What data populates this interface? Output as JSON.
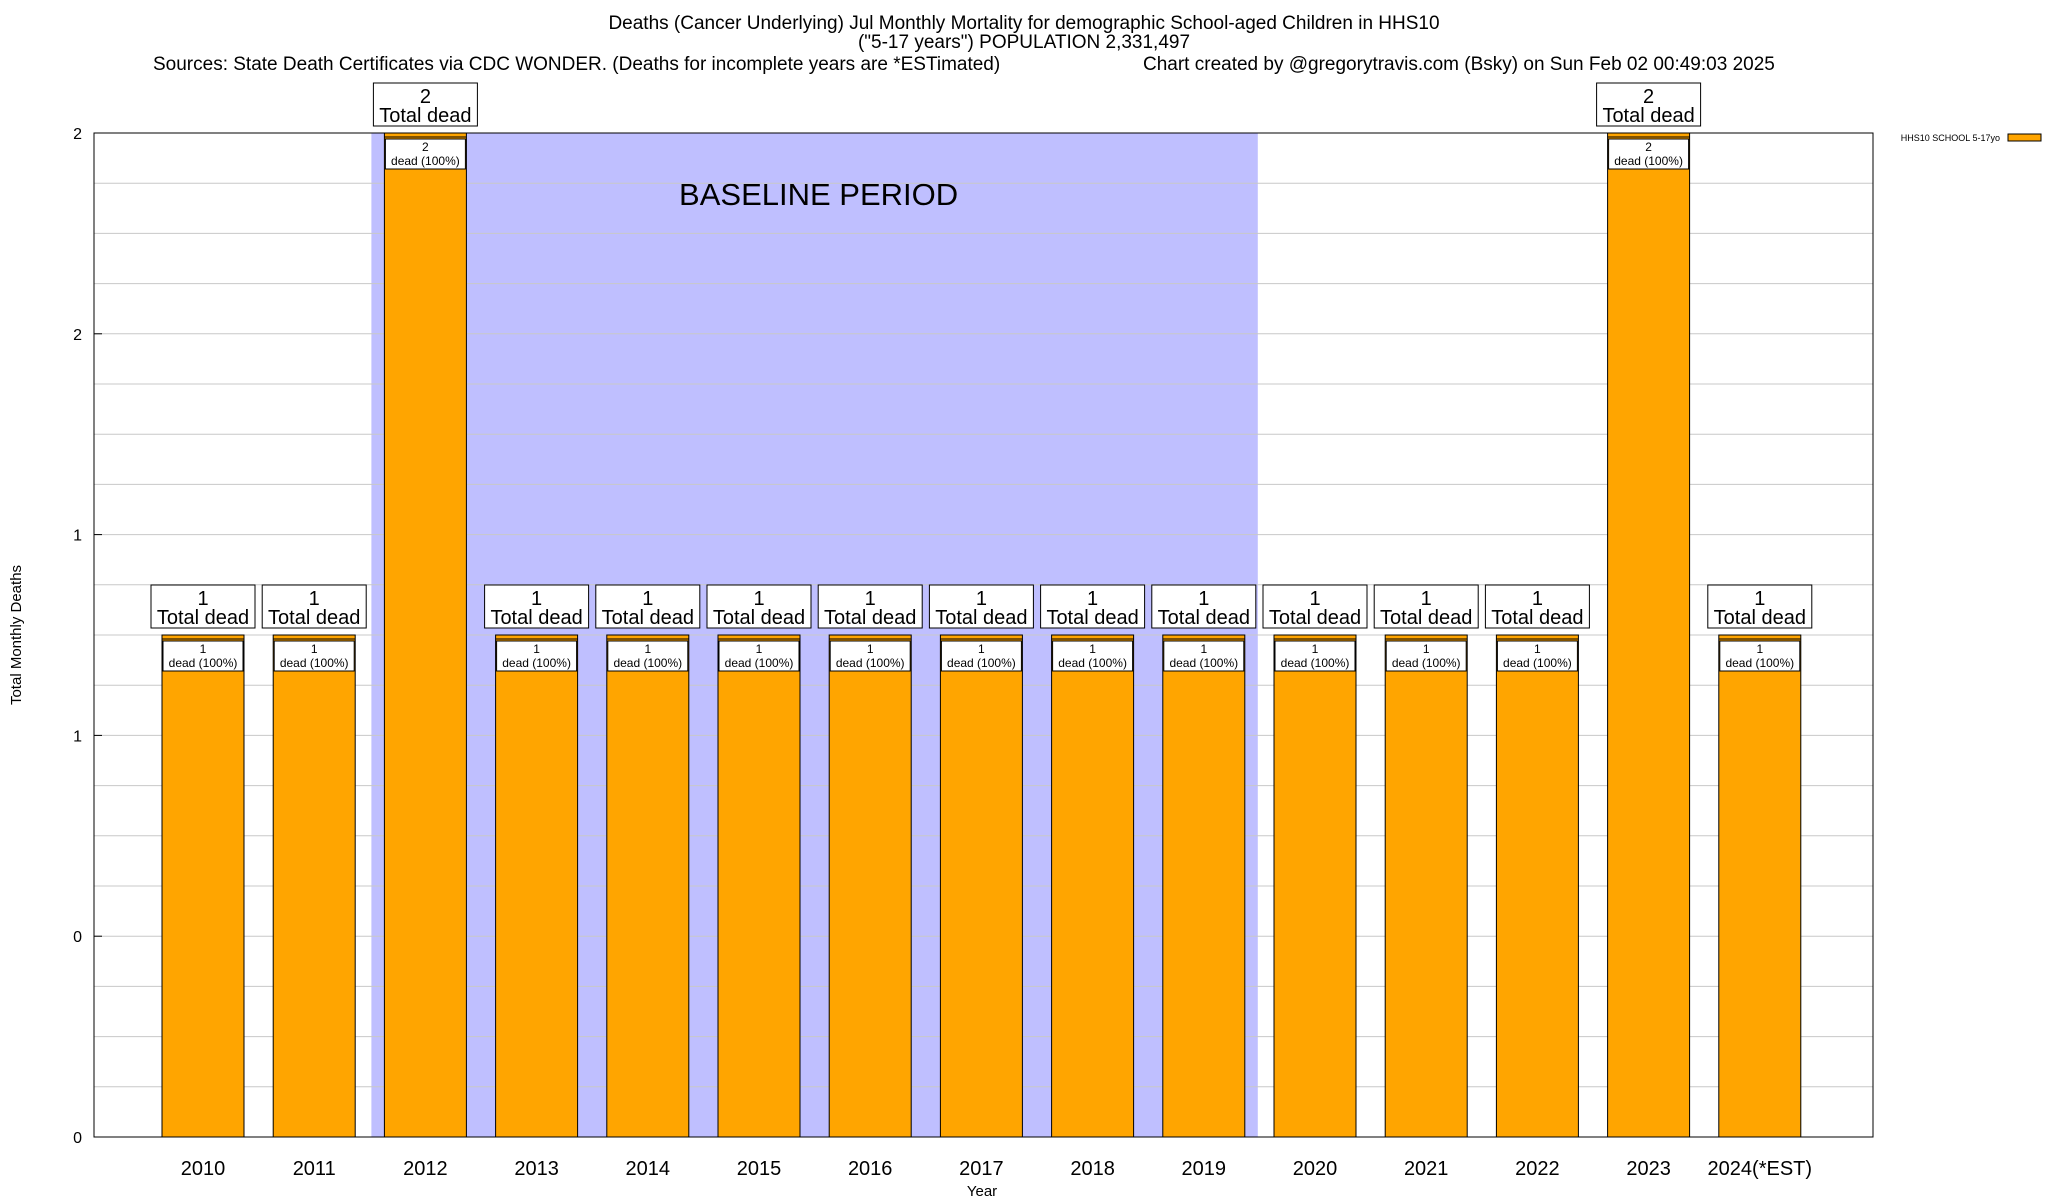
{
  "header": {
    "title_line1": "Deaths (Cancer Underlying) Jul Monthly Mortality for demographic School-aged Children in HHS10",
    "title_line2": "(\"5-17 years\") POPULATION 2,331,497",
    "sources": "Sources: State Death Certificates via CDC WONDER. (Deaths for incomplete years are *ESTimated)",
    "credit": "Chart created by @gregorytravis.com (Bsky) on Sun Feb 02 00:49:03 2025"
  },
  "chart_data": {
    "type": "bar",
    "xlabel": "Year",
    "ylabel": "Total Monthly Deaths",
    "ylim": [
      0,
      2
    ],
    "y_tick_labels": [
      "0",
      "0",
      "1",
      "1",
      "2",
      "2"
    ],
    "grid": true,
    "legend_position": "top-right",
    "categories": [
      "2010",
      "2011",
      "2012",
      "2013",
      "2014",
      "2015",
      "2016",
      "2017",
      "2018",
      "2019",
      "2020",
      "2021",
      "2022",
      "2023",
      "2024(*EST)"
    ],
    "series": [
      {
        "name": "HHS10 SCHOOL 5-17yo",
        "color": "#ffa500",
        "values": [
          1,
          1,
          2,
          1,
          1,
          1,
          1,
          1,
          1,
          1,
          1,
          1,
          1,
          2,
          1
        ]
      }
    ],
    "top_labels": [
      {
        "count": "1",
        "text": "Total dead"
      },
      {
        "count": "1",
        "text": "Total dead"
      },
      {
        "count": "2",
        "text": "Total dead"
      },
      {
        "count": "1",
        "text": "Total dead"
      },
      {
        "count": "1",
        "text": "Total dead"
      },
      {
        "count": "1",
        "text": "Total dead"
      },
      {
        "count": "1",
        "text": "Total dead"
      },
      {
        "count": "1",
        "text": "Total dead"
      },
      {
        "count": "1",
        "text": "Total dead"
      },
      {
        "count": "1",
        "text": "Total dead"
      },
      {
        "count": "1",
        "text": "Total dead"
      },
      {
        "count": "1",
        "text": "Total dead"
      },
      {
        "count": "1",
        "text": "Total dead"
      },
      {
        "count": "2",
        "text": "Total dead"
      },
      {
        "count": "1",
        "text": "Total dead"
      }
    ],
    "inner_labels": [
      {
        "count": "1",
        "text": "dead (100%)"
      },
      {
        "count": "1",
        "text": "dead (100%)"
      },
      {
        "count": "2",
        "text": "dead (100%)"
      },
      {
        "count": "1",
        "text": "dead (100%)"
      },
      {
        "count": "1",
        "text": "dead (100%)"
      },
      {
        "count": "1",
        "text": "dead (100%)"
      },
      {
        "count": "1",
        "text": "dead (100%)"
      },
      {
        "count": "1",
        "text": "dead (100%)"
      },
      {
        "count": "1",
        "text": "dead (100%)"
      },
      {
        "count": "1",
        "text": "dead (100%)"
      },
      {
        "count": "1",
        "text": "dead (100%)"
      },
      {
        "count": "1",
        "text": "dead (100%)"
      },
      {
        "count": "1",
        "text": "dead (100%)"
      },
      {
        "count": "2",
        "text": "dead (100%)"
      },
      {
        "count": "1",
        "text": "dead (100%)"
      }
    ],
    "annotations": [
      {
        "text": "BASELINE PERIOD",
        "span": [
          "2012",
          "2019"
        ],
        "color": "#bfbfff"
      }
    ]
  }
}
